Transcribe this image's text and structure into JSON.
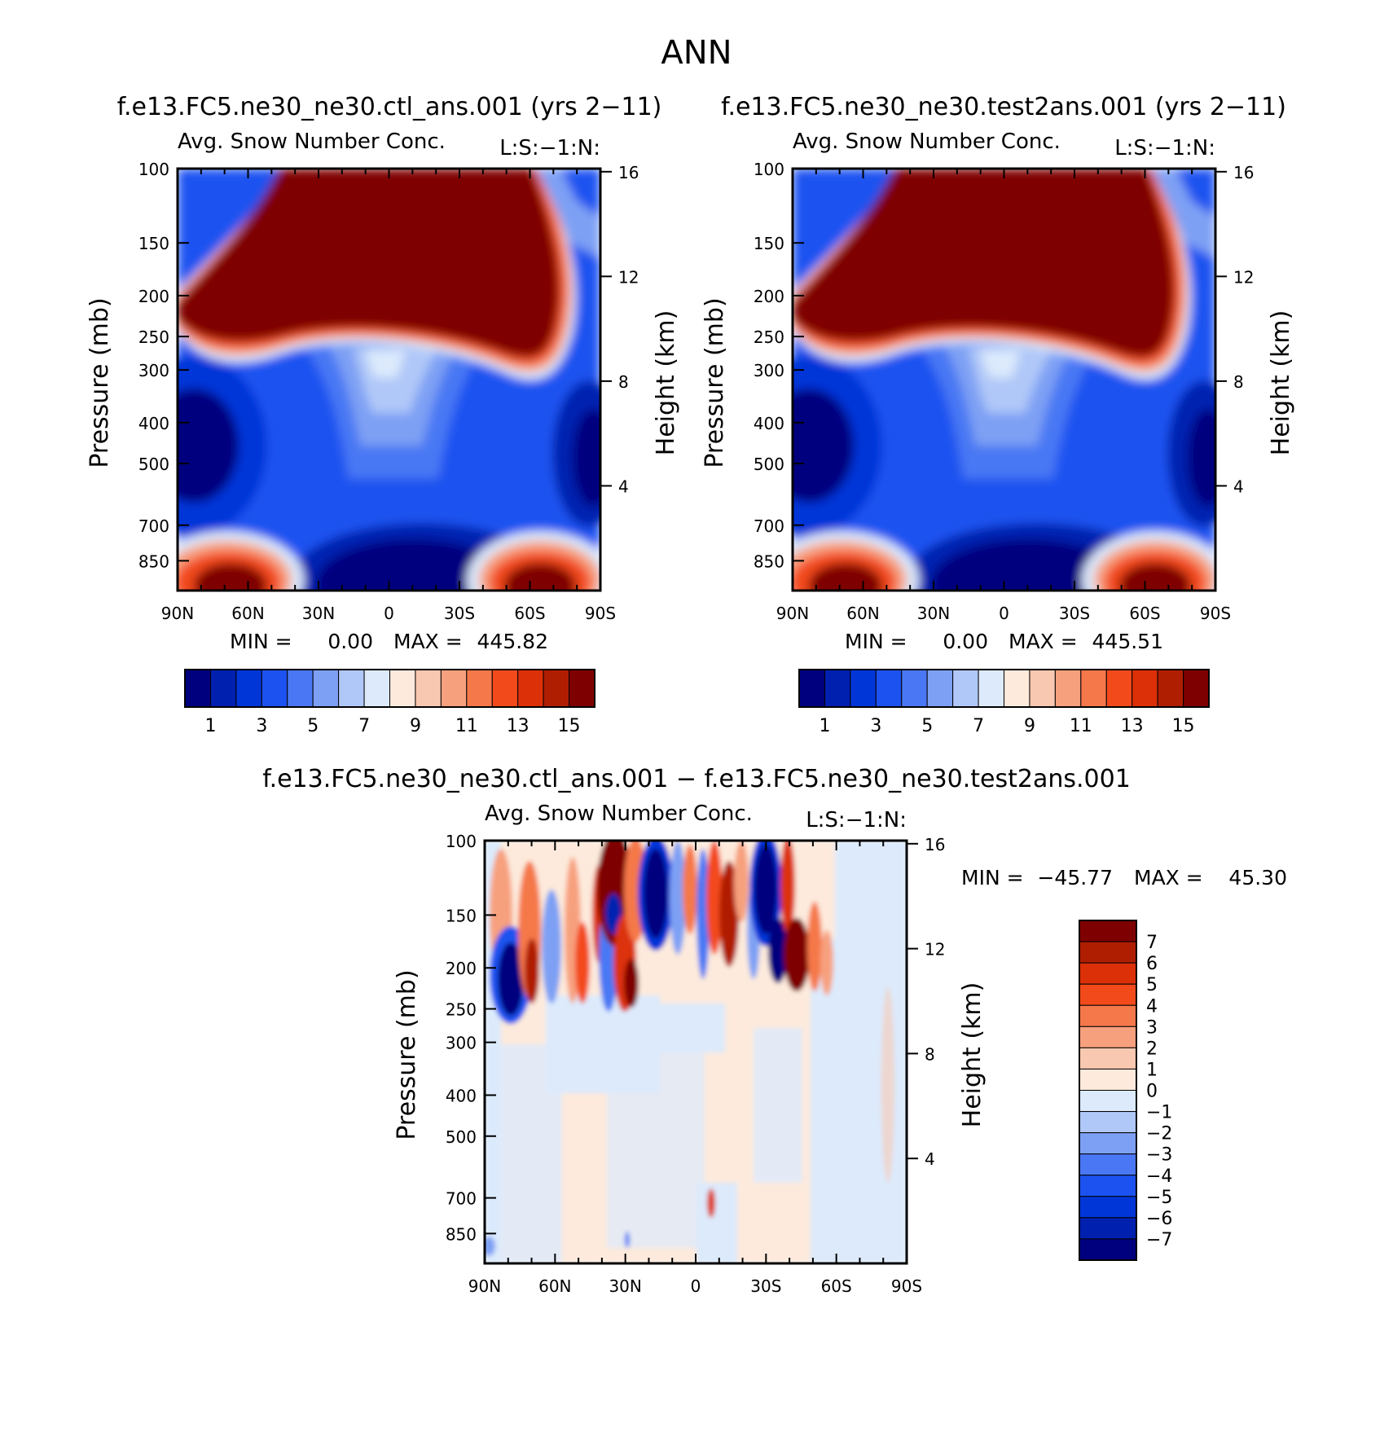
{
  "page": {
    "title": "ANN"
  },
  "colors": {
    "abs_scale": [
      "#00007f",
      "#0020b0",
      "#0036d8",
      "#1c52f0",
      "#4a78f4",
      "#7ea0f4",
      "#b0c8f8",
      "#dceafc",
      "#fdeadc",
      "#f9c8b0",
      "#f7a07e",
      "#f5784a",
      "#f34a1c",
      "#dc3008",
      "#b01e02",
      "#7f0000"
    ],
    "diff_scale": [
      "#00007f",
      "#0020b0",
      "#0036d8",
      "#1c52f0",
      "#4a78f4",
      "#7ea0f4",
      "#b0c8f8",
      "#dceafc",
      "#fdeadc",
      "#f9c8b0",
      "#f7a07e",
      "#f5784a",
      "#f34a1c",
      "#dc3008",
      "#b01e02",
      "#7f0000"
    ]
  },
  "chart_data": [
    {
      "type": "heatmap",
      "title": "f.e13.FC5.ne30_ne30.ctl_ans.001 (yrs 2−11)",
      "left_string": "Avg. Snow Number Conc.",
      "right_string": "L:S:−1:N:",
      "ylabel": "Pressure (mb)",
      "y2label": "Height (km)",
      "x_ticks": [
        "90N",
        "60N",
        "30N",
        "0",
        "30S",
        "60S",
        "90S"
      ],
      "y_ticks": [
        100,
        150,
        200,
        250,
        300,
        400,
        500,
        700,
        850
      ],
      "y2_ticks": [
        16,
        12,
        8,
        4
      ],
      "stats": {
        "min_label": "MIN =",
        "min_value": "0.00",
        "max_label": "MAX =",
        "max_value": "445.82"
      },
      "colorbar_labels": [
        "1",
        "3",
        "5",
        "7",
        "9",
        "11",
        "13",
        "15"
      ],
      "ylim": [
        100,
        1000
      ],
      "xlim": [
        90,
        -90
      ]
    },
    {
      "type": "heatmap",
      "title": "f.e13.FC5.ne30_ne30.test2ans.001 (yrs 2−11)",
      "left_string": "Avg. Snow Number Conc.",
      "right_string": "L:S:−1:N:",
      "ylabel": "Pressure (mb)",
      "y2label": "Height (km)",
      "x_ticks": [
        "90N",
        "60N",
        "30N",
        "0",
        "30S",
        "60S",
        "90S"
      ],
      "y_ticks": [
        100,
        150,
        200,
        250,
        300,
        400,
        500,
        700,
        850
      ],
      "y2_ticks": [
        16,
        12,
        8,
        4
      ],
      "stats": {
        "min_label": "MIN =",
        "min_value": "0.00",
        "max_label": "MAX =",
        "max_value": "445.51"
      },
      "colorbar_labels": [
        "1",
        "3",
        "5",
        "7",
        "9",
        "11",
        "13",
        "15"
      ],
      "ylim": [
        100,
        1000
      ],
      "xlim": [
        90,
        -90
      ]
    },
    {
      "type": "heatmap",
      "title": "f.e13.FC5.ne30_ne30.ctl_ans.001 − f.e13.FC5.ne30_ne30.test2ans.001",
      "left_string": "Avg. Snow Number Conc.",
      "right_string": "L:S:−1:N:",
      "ylabel": "Pressure (mb)",
      "y2label": "Height (km)",
      "x_ticks": [
        "90N",
        "60N",
        "30N",
        "0",
        "30S",
        "60S",
        "90S"
      ],
      "y_ticks": [
        100,
        150,
        200,
        250,
        300,
        400,
        500,
        700,
        850
      ],
      "y2_ticks": [
        16,
        12,
        8,
        4
      ],
      "stats": {
        "min_label": "MIN =",
        "min_value": "−45.77",
        "max_label": "MAX =",
        "max_value": "45.30"
      },
      "colorbar_labels": [
        "7",
        "6",
        "5",
        "4",
        "3",
        "2",
        "1",
        "0",
        "−1",
        "−2",
        "−3",
        "−4",
        "−5",
        "−6",
        "−7"
      ],
      "ylim": [
        100,
        1000
      ],
      "xlim": [
        90,
        -90
      ]
    }
  ]
}
